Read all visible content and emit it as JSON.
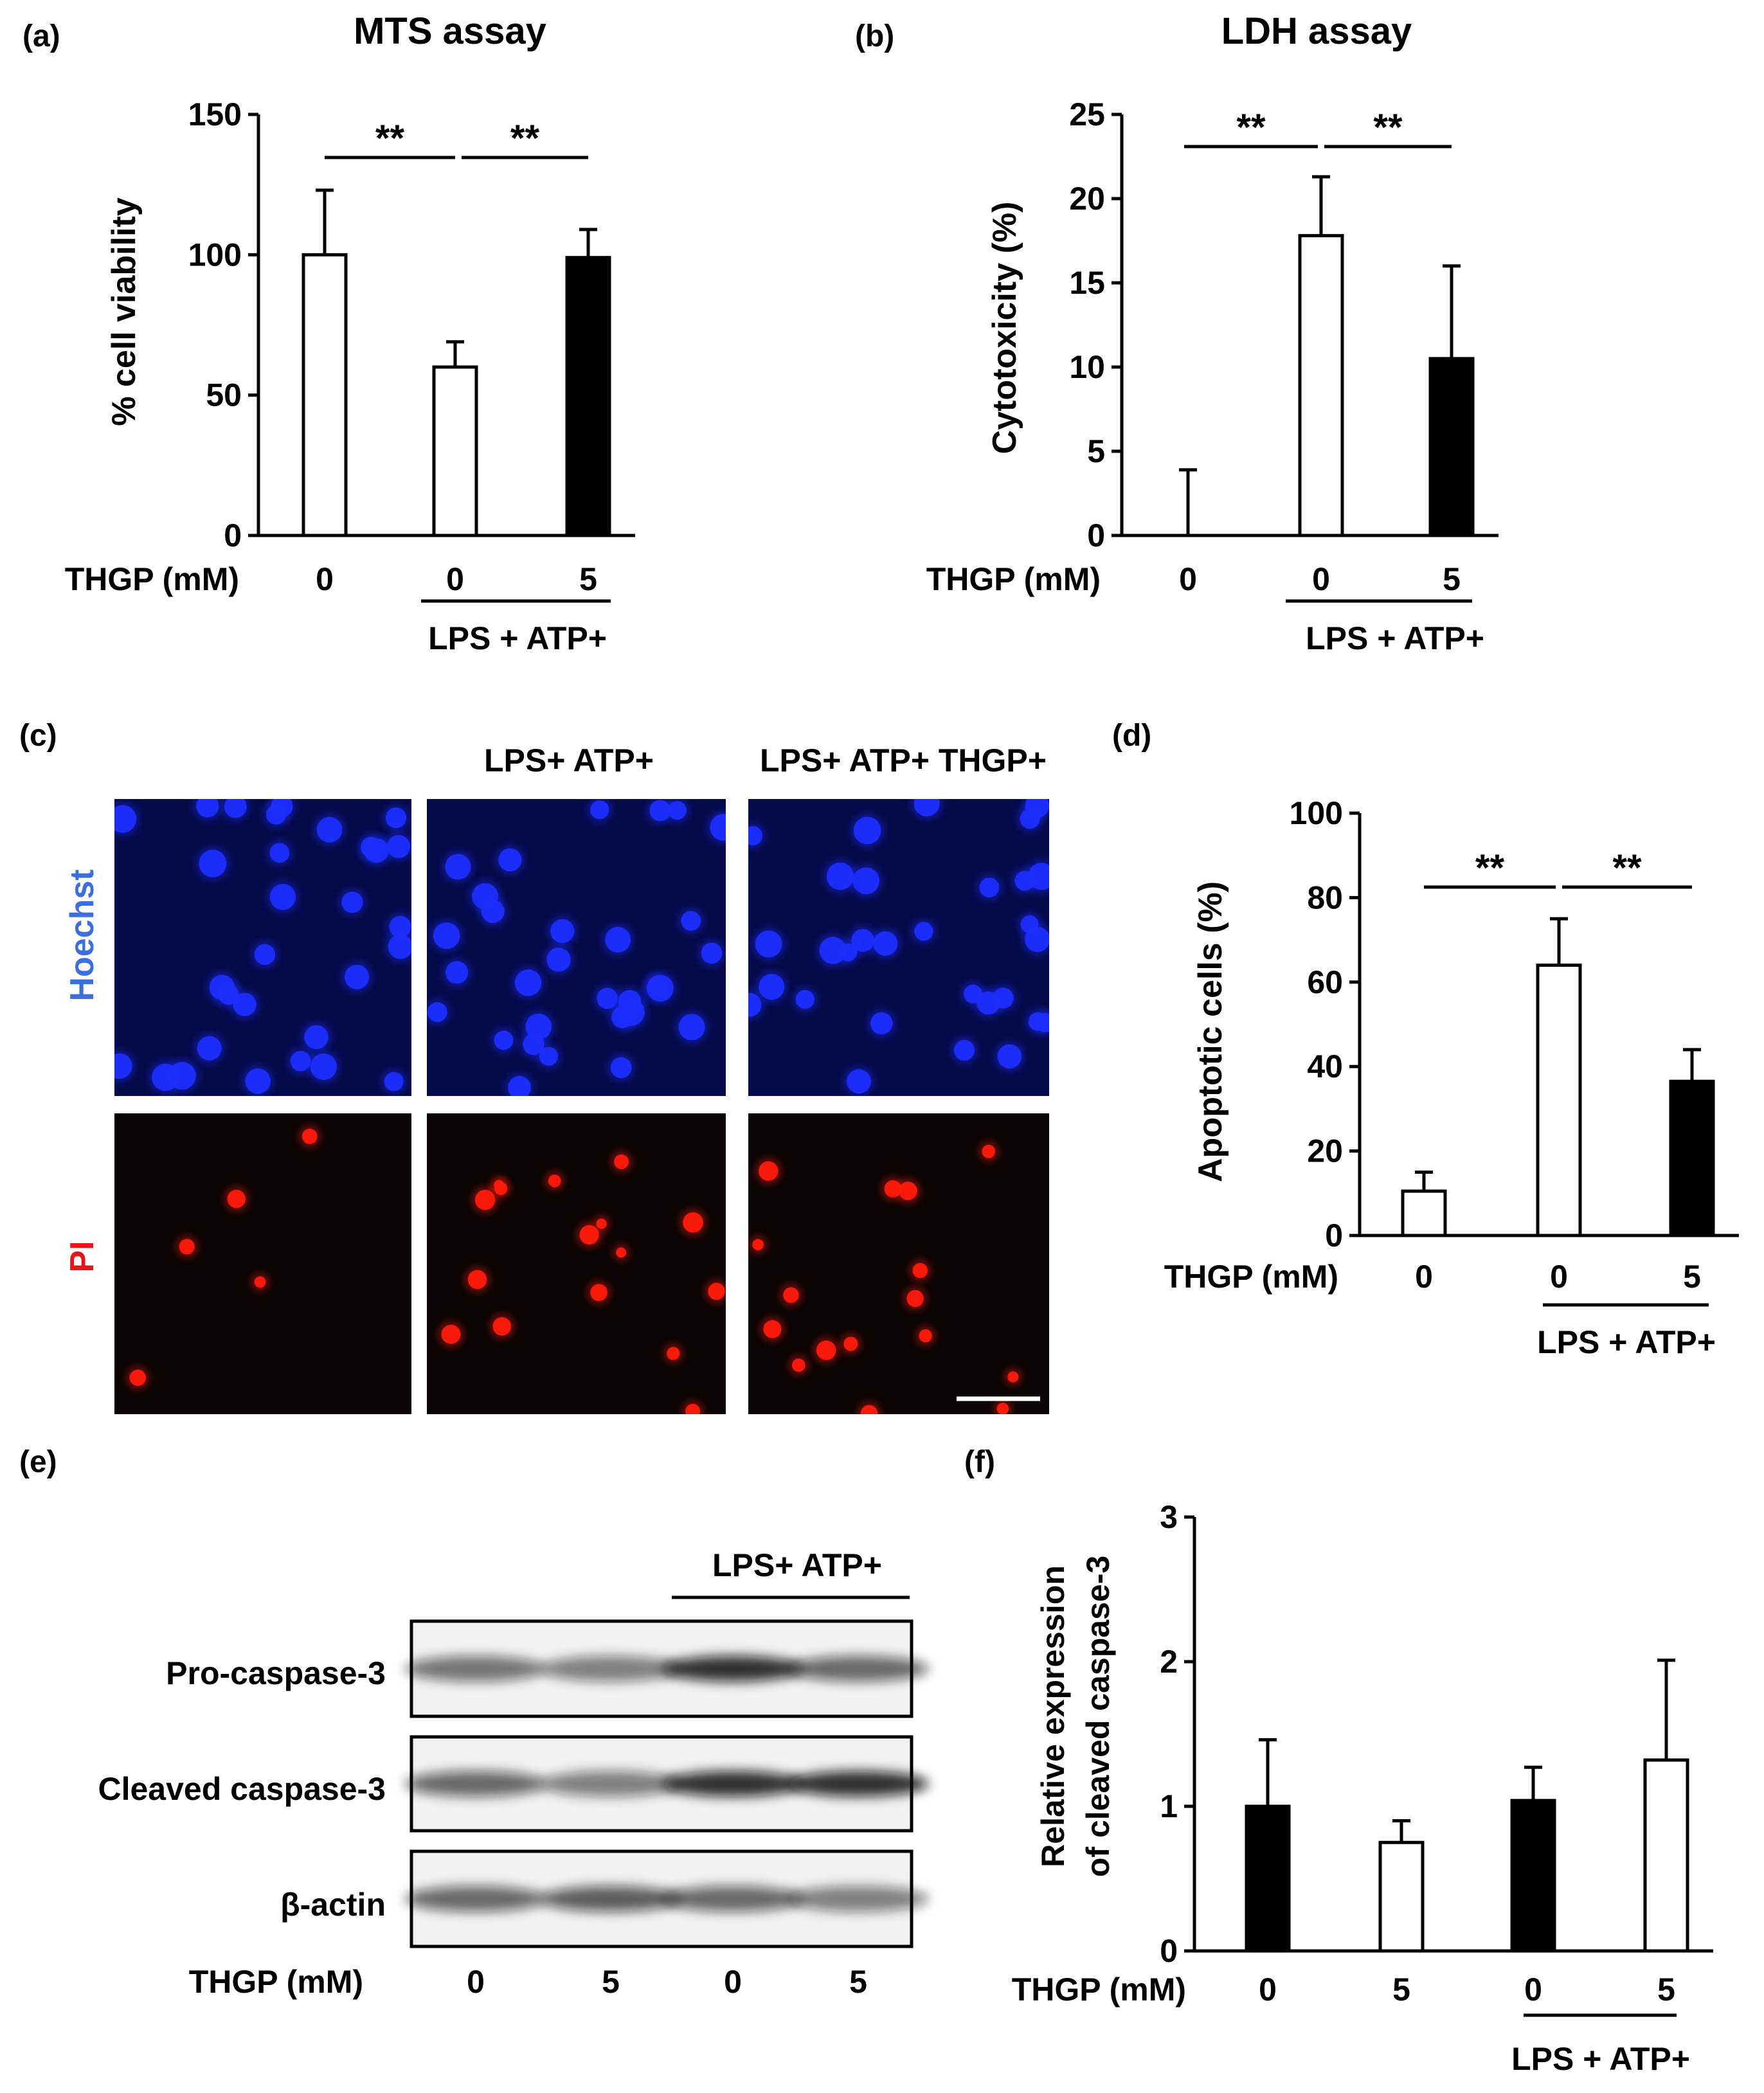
{
  "chart_data": [
    {
      "panel_label": "(a)",
      "type": "bar",
      "title": "MTS assay",
      "ylabel": "% cell viability",
      "ylim": [
        0,
        150
      ],
      "yticks": [
        "0",
        "50",
        "100",
        "150"
      ],
      "row_label": "THGP (mM)",
      "categories": [
        "0",
        "0",
        "5"
      ],
      "values": [
        100,
        60,
        99
      ],
      "errors": [
        23,
        9,
        10
      ],
      "fills": [
        "#ffffff",
        "#ffffff",
        "#000000"
      ],
      "group_label": "LPS + ATP+",
      "significance": [
        "**",
        "**"
      ]
    },
    {
      "panel_label": "(b)",
      "type": "bar",
      "title": "LDH assay",
      "ylabel": "Cytotoxicity (%)",
      "ylim": [
        0,
        25
      ],
      "yticks": [
        "0",
        "5",
        "10",
        "15",
        "20",
        "25"
      ],
      "row_label": "THGP (mM)",
      "categories": [
        "0",
        "0",
        "5"
      ],
      "values": [
        0,
        17.8,
        10.5
      ],
      "errors": [
        3.9,
        3.5,
        5.5
      ],
      "fills": [
        "#ffffff",
        "#ffffff",
        "#000000"
      ],
      "group_label": "LPS + ATP+",
      "significance": [
        "**",
        "**"
      ]
    },
    {
      "panel_label": "(d)",
      "type": "bar",
      "title": "",
      "ylabel": "Apoptotic cells (%)",
      "ylim": [
        0,
        100
      ],
      "yticks": [
        "0",
        "20",
        "40",
        "60",
        "80",
        "100"
      ],
      "row_label": "THGP (mM)",
      "categories": [
        "0",
        "0",
        "5"
      ],
      "values": [
        10.5,
        64,
        36.5
      ],
      "errors": [
        4.5,
        11,
        7.5
      ],
      "fills": [
        "#ffffff",
        "#ffffff",
        "#000000"
      ],
      "group_label": "LPS + ATP+",
      "significance": [
        "**",
        "**"
      ]
    },
    {
      "panel_label": "(f)",
      "type": "bar",
      "title": "",
      "ylabel_lines": [
        "Relative expression",
        "of cleaved caspase-3"
      ],
      "ylim": [
        0,
        3
      ],
      "yticks": [
        "0",
        "1",
        "2",
        "3"
      ],
      "row_label": "THGP (mM)",
      "categories": [
        "0",
        "5",
        "0",
        "5"
      ],
      "values": [
        1.0,
        0.75,
        1.04,
        1.32
      ],
      "errors": [
        0.46,
        0.15,
        0.23,
        0.69
      ],
      "fills": [
        "#000000",
        "#ffffff",
        "#000000",
        "#ffffff"
      ],
      "group_label": "LPS + ATP+"
    }
  ],
  "panel_c": {
    "panel_label": "(c)",
    "column_titles": [
      "LPS+ ATP+",
      "LPS+ ATP+ THGP+"
    ],
    "row_labels": [
      "Hoechst",
      "PI"
    ],
    "colors": {
      "hoechst_label": "#3b6fe0",
      "pi_label": "#e8141a",
      "hoechst_bg": "#050a48",
      "hoechst_cell": "#1e2eff",
      "pi_bg": "#0c0505",
      "pi_cell": "#ff1a0a"
    }
  },
  "panel_e": {
    "panel_label": "(e)",
    "group_label": "LPS+ ATP+",
    "blot_labels": [
      "Pro-caspase-3",
      "Cleaved caspase-3",
      "β-actin"
    ],
    "row_label": "THGP (mM)",
    "lanes": [
      "0",
      "5",
      "0",
      "5"
    ]
  }
}
